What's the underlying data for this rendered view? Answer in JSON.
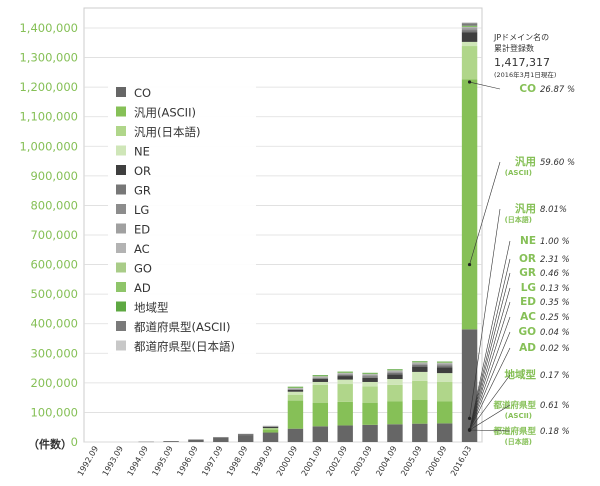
{
  "chart_data": {
    "type": "bar",
    "stacked": true,
    "unit_label": "（件数）",
    "ylim": [
      0,
      1400000
    ],
    "yticks": [
      {
        "value": 0,
        "label": "0"
      },
      {
        "value": 100000,
        "label": "100,000"
      },
      {
        "value": 200000,
        "label": "200,000"
      },
      {
        "value": 300000,
        "label": "300,000"
      },
      {
        "value": 400000,
        "label": "400,000"
      },
      {
        "value": 500000,
        "label": "500,000"
      },
      {
        "value": 600000,
        "label": "600,000"
      },
      {
        "value": 700000,
        "label": "700,000"
      },
      {
        "value": 800000,
        "label": "800,000"
      },
      {
        "value": 900000,
        "label": "900,000"
      },
      {
        "value": 1000000,
        "label": "1,000,000"
      },
      {
        "value": 1100000,
        "label": "1,100,000"
      },
      {
        "value": 1200000,
        "label": "1,200,000"
      },
      {
        "value": 1300000,
        "label": "1,300,000"
      },
      {
        "value": 1400000,
        "label": "1,400,000"
      }
    ],
    "categories": [
      "1992.09",
      "1993.09",
      "1994.09",
      "1995.09",
      "1996.09",
      "1997.09",
      "1998.09",
      "1999.09",
      "2000.09",
      "2001.09",
      "2002.09",
      "2003.09",
      "2004.09",
      "2005.09",
      "2006.09",
      "2016.03"
    ],
    "series": [
      {
        "name": "CO",
        "color": "#666666",
        "values": [
          0,
          0,
          1000,
          3000,
          7000,
          14000,
          23000,
          32000,
          45000,
          53000,
          56000,
          58000,
          60000,
          62000,
          63000,
          381000
        ]
      },
      {
        "name": "汎用(ASCII)",
        "color": "#86c057",
        "values": [
          0,
          0,
          0,
          0,
          0,
          0,
          0,
          10000,
          95000,
          80000,
          80000,
          75000,
          78000,
          80000,
          75000,
          845000
        ]
      },
      {
        "name": "汎用(日本語)",
        "color": "#b0d68a",
        "values": [
          0,
          0,
          0,
          0,
          0,
          0,
          0,
          5000,
          20000,
          60000,
          60000,
          55000,
          55000,
          65000,
          65000,
          113000
        ]
      },
      {
        "name": "NE",
        "color": "#cfe6b8",
        "values": [
          0,
          0,
          0,
          0,
          0,
          0,
          0,
          0,
          10000,
          10000,
          15000,
          15000,
          20000,
          30000,
          30000,
          14000
        ]
      },
      {
        "name": "OR",
        "color": "#3f3f3f",
        "values": [
          0,
          0,
          0,
          0,
          1000,
          2000,
          3000,
          5000,
          6000,
          10000,
          12000,
          14000,
          16000,
          18000,
          20000,
          33000
        ]
      },
      {
        "name": "GR",
        "color": "#777777",
        "values": [
          0,
          0,
          0,
          0,
          0,
          0,
          0,
          0,
          2000,
          3000,
          4000,
          5000,
          5000,
          6000,
          6000,
          7000
        ]
      },
      {
        "name": "LG",
        "color": "#8c8c8c",
        "values": [
          0,
          0,
          0,
          0,
          0,
          0,
          0,
          0,
          0,
          0,
          1000,
          1000,
          1000,
          1000,
          1000,
          2000
        ]
      },
      {
        "name": "ED",
        "color": "#a0a0a0",
        "values": [
          0,
          0,
          0,
          0,
          0,
          0,
          0,
          1000,
          2000,
          3000,
          3000,
          4000,
          4000,
          4000,
          5000,
          5000
        ]
      },
      {
        "name": "AC",
        "color": "#b3b3b3",
        "values": [
          0,
          0,
          0,
          0,
          0,
          1000,
          2000,
          2000,
          3000,
          3000,
          3000,
          3000,
          3000,
          3000,
          3000,
          4000
        ]
      },
      {
        "name": "GO",
        "color": "#a9cc88",
        "values": [
          0,
          0,
          0,
          0,
          0,
          0,
          0,
          0,
          1000,
          1000,
          1000,
          1000,
          1000,
          1000,
          1000,
          1000
        ]
      },
      {
        "name": "AD",
        "color": "#8fc56a",
        "values": [
          0,
          0,
          0,
          0,
          0,
          0,
          0,
          0,
          0,
          0,
          0,
          0,
          0,
          0,
          0,
          300
        ]
      },
      {
        "name": "地域型",
        "color": "#5ea842",
        "values": [
          0,
          0,
          0,
          0,
          0,
          0,
          0,
          0,
          3000,
          3000,
          3000,
          3000,
          3000,
          3000,
          3000,
          2400
        ]
      },
      {
        "name": "都道府県型(ASCII)",
        "color": "#7a7a7a",
        "values": [
          0,
          0,
          0,
          0,
          0,
          0,
          0,
          0,
          0,
          0,
          0,
          0,
          0,
          0,
          0,
          8700
        ]
      },
      {
        "name": "都道府県型(日本語)",
        "color": "#c8c8c8",
        "values": [
          0,
          0,
          0,
          0,
          0,
          0,
          0,
          0,
          0,
          0,
          0,
          0,
          0,
          0,
          0,
          2600
        ]
      }
    ],
    "legend_position": "top-left inside"
  },
  "annotation": {
    "line1": "JPドメイン名の",
    "line2": "累計登録数",
    "total": "1,417,317",
    "date_note": "(2016年3月1日現在)"
  },
  "share_labels": [
    {
      "name": "CO",
      "name_lines": [
        "CO"
      ],
      "pct": "26.87 %",
      "color": "#86c057"
    },
    {
      "name": "汎用",
      "name_lines": [
        "汎用",
        "(ASCII)"
      ],
      "pct": "59.60 %",
      "color": "#86c057"
    },
    {
      "name": "汎用",
      "name_lines": [
        "汎用",
        "(日本語)"
      ],
      "pct": "8.01%",
      "color": "#86c057"
    },
    {
      "name": "NE",
      "name_lines": [
        "NE"
      ],
      "pct": "1.00 %",
      "color": "#86c057"
    },
    {
      "name": "OR",
      "name_lines": [
        "OR"
      ],
      "pct": "2.31 %",
      "color": "#86c057"
    },
    {
      "name": "GR",
      "name_lines": [
        "GR"
      ],
      "pct": "0.46 %",
      "color": "#86c057"
    },
    {
      "name": "LG",
      "name_lines": [
        "LG"
      ],
      "pct": "0.13 %",
      "color": "#86c057"
    },
    {
      "name": "ED",
      "name_lines": [
        "ED"
      ],
      "pct": "0.35 %",
      "color": "#86c057"
    },
    {
      "name": "AC",
      "name_lines": [
        "AC"
      ],
      "pct": "0.25 %",
      "color": "#86c057"
    },
    {
      "name": "GO",
      "name_lines": [
        "GO"
      ],
      "pct": "0.04 %",
      "color": "#86c057"
    },
    {
      "name": "AD",
      "name_lines": [
        "AD"
      ],
      "pct": "0.02 %",
      "color": "#86c057"
    },
    {
      "name": "地域型",
      "name_lines": [
        "地域型"
      ],
      "pct": "0.17 %",
      "color": "#86c057"
    },
    {
      "name": "都道府県型(ASCII)",
      "name_lines": [
        "都道府県型",
        "(ASCII)"
      ],
      "pct": "0.61 %",
      "color": "#86c057"
    },
    {
      "name": "都道府県型(日本語)",
      "name_lines": [
        "都道府県型",
        "(日本語)"
      ],
      "pct": "0.18 %",
      "color": "#86c057"
    }
  ],
  "colors": {
    "axis_text": "#86c057",
    "grid": "#dddddd",
    "annotation_text": "#333333"
  }
}
